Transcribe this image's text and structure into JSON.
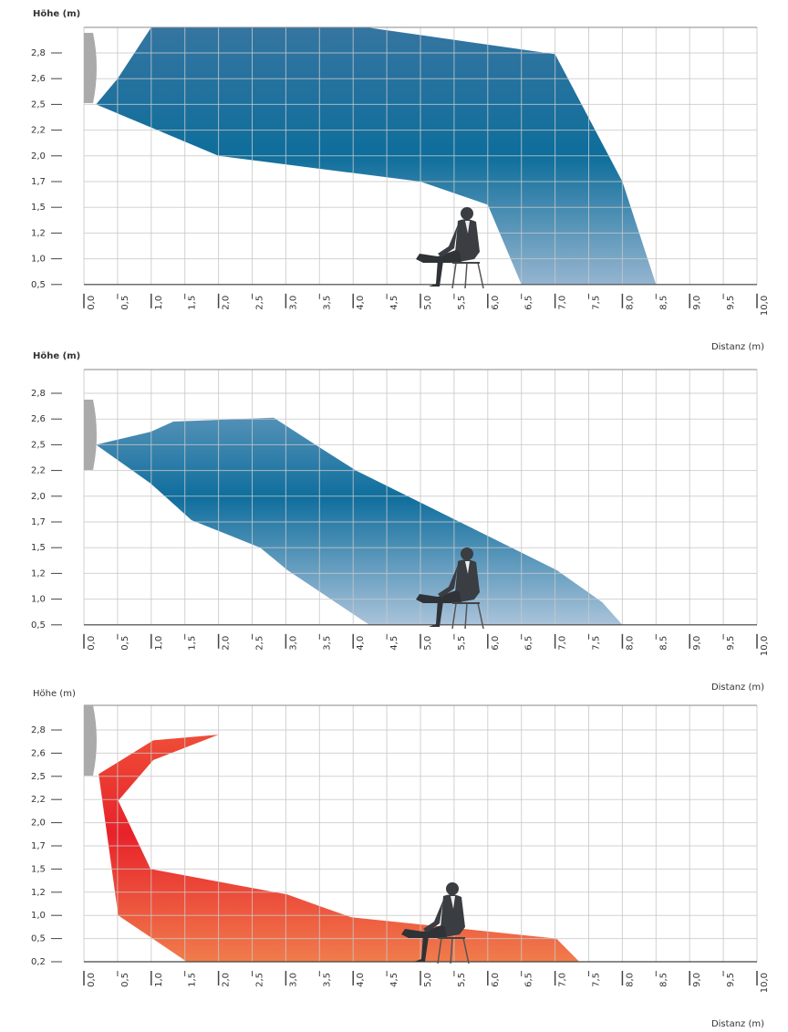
{
  "chart_data": [
    {
      "type": "area",
      "y_label": "Höhe (m)",
      "x_label": "Distanz (m)",
      "xlim": [
        0,
        10
      ],
      "xticks": [
        {
          "value": 0,
          "label": "0,0"
        },
        {
          "value": 0.5,
          "label": "0,5"
        },
        {
          "value": 1,
          "label": "1,0"
        },
        {
          "value": 1.5,
          "label": "1,5"
        },
        {
          "value": 2,
          "label": "2,0"
        },
        {
          "value": 2.5,
          "label": "2,5"
        },
        {
          "value": 3,
          "label": "3,0"
        },
        {
          "value": 3.5,
          "label": "3,5"
        },
        {
          "value": 4,
          "label": "4,0"
        },
        {
          "value": 4.5,
          "label": "4,5"
        },
        {
          "value": 5,
          "label": "5,0"
        },
        {
          "value": 5.5,
          "label": "5,5"
        },
        {
          "value": 6,
          "label": "6,0"
        },
        {
          "value": 6.5,
          "label": "6,5"
        },
        {
          "value": 7,
          "label": "7,0"
        },
        {
          "value": 7.5,
          "label": "7,5"
        },
        {
          "value": 8,
          "label": "8,0"
        },
        {
          "value": 8.5,
          "label": "8,5"
        },
        {
          "value": 9,
          "label": "9,0"
        },
        {
          "value": 9.5,
          "label": "9,5"
        },
        {
          "value": 10,
          "label": "10,0"
        }
      ],
      "ylim": [
        0.5,
        3.0
      ],
      "yticks": [
        {
          "value": 2.8,
          "label": "2,8"
        },
        {
          "value": 2.6,
          "label": "2,6"
        },
        {
          "value": 2.5,
          "label": "2,5"
        },
        {
          "value": 2.2,
          "label": "2,2"
        },
        {
          "value": 2.0,
          "label": "2,0"
        },
        {
          "value": 1.7,
          "label": "1,7"
        },
        {
          "value": 1.5,
          "label": "1,5"
        },
        {
          "value": 1.2,
          "label": "1,2"
        },
        {
          "value": 1.0,
          "label": "1,0"
        },
        {
          "value": 0.5,
          "label": "0,5"
        }
      ],
      "x": [
        0.18,
        0.5,
        1.0,
        4.2,
        7.0,
        8.0,
        8.5,
        6.5,
        6.0,
        5.0,
        2.0,
        1.0
      ],
      "values": [
        2.5,
        2.6,
        3.0,
        3.0,
        2.79,
        1.7,
        0.5,
        0.5,
        1.52,
        1.7,
        2.0,
        2.23
      ],
      "gradient": [
        "#3575a1",
        "#0e6e9b",
        "#95b5d0"
      ],
      "grid": true
    },
    {
      "type": "area",
      "y_label": "Höhe (m)",
      "x_label": "Distanz (m)",
      "xlim": [
        0,
        10
      ],
      "xticks": [
        {
          "value": 0,
          "label": "0,0"
        },
        {
          "value": 0.5,
          "label": "0,5"
        },
        {
          "value": 1,
          "label": "1,0"
        },
        {
          "value": 1.5,
          "label": "1,5"
        },
        {
          "value": 2,
          "label": "2,0"
        },
        {
          "value": 2.5,
          "label": "2,5"
        },
        {
          "value": 3,
          "label": "3,0"
        },
        {
          "value": 3.5,
          "label": "3,5"
        },
        {
          "value": 4,
          "label": "4,0"
        },
        {
          "value": 4.5,
          "label": "4,5"
        },
        {
          "value": 5,
          "label": "5,0"
        },
        {
          "value": 5.5,
          "label": "5,5"
        },
        {
          "value": 6,
          "label": "6,0"
        },
        {
          "value": 6.5,
          "label": "6,5"
        },
        {
          "value": 7,
          "label": "7,0"
        },
        {
          "value": 7.5,
          "label": "7,5"
        },
        {
          "value": 8,
          "label": "8,0"
        },
        {
          "value": 8.5,
          "label": "8,5"
        },
        {
          "value": 9,
          "label": "9,0"
        },
        {
          "value": 9.5,
          "label": "9,5"
        },
        {
          "value": 10,
          "label": "10,0"
        }
      ],
      "ylim": [
        0.5,
        3.0
      ],
      "yticks": [
        {
          "value": 2.8,
          "label": "2,8"
        },
        {
          "value": 2.6,
          "label": "2,6"
        },
        {
          "value": 2.5,
          "label": "2,5"
        },
        {
          "value": 2.2,
          "label": "2,2"
        },
        {
          "value": 2.0,
          "label": "2,0"
        },
        {
          "value": 1.7,
          "label": "1,7"
        },
        {
          "value": 1.5,
          "label": "1,5"
        },
        {
          "value": 1.2,
          "label": "1,2"
        },
        {
          "value": 1.0,
          "label": "1,0"
        },
        {
          "value": 0.5,
          "label": "0,5"
        }
      ],
      "x": [
        0.18,
        0.99,
        1.33,
        2.82,
        3.5,
        4.04,
        7.02,
        7.7,
        8.0,
        4.24,
        3.02,
        2.62,
        1.6,
        0.99
      ],
      "values": [
        2.5,
        2.55,
        2.59,
        2.61,
        2.47,
        2.2,
        1.24,
        0.94,
        0.5,
        0.5,
        1.24,
        1.5,
        1.72,
        2.1
      ],
      "gradient": [
        "#7ca6c6",
        "#0f6e9d",
        "#aac3da"
      ],
      "grid": true
    },
    {
      "type": "area",
      "y_label": "Höhe (m)",
      "x_label": "Distanz (m)",
      "xlim": [
        0,
        10
      ],
      "xticks": [
        {
          "value": 0,
          "label": "0,0"
        },
        {
          "value": 0.5,
          "label": "0,5"
        },
        {
          "value": 1,
          "label": "1,0"
        },
        {
          "value": 1.5,
          "label": "1,5"
        },
        {
          "value": 2,
          "label": "2,0"
        },
        {
          "value": 2.5,
          "label": "2,5"
        },
        {
          "value": 3,
          "label": "3,0"
        },
        {
          "value": 3.5,
          "label": "3,5"
        },
        {
          "value": 4,
          "label": "4,0"
        },
        {
          "value": 4.5,
          "label": "4,5"
        },
        {
          "value": 5,
          "label": "5,0"
        },
        {
          "value": 5.5,
          "label": "5,5"
        },
        {
          "value": 6,
          "label": "6,0"
        },
        {
          "value": 6.5,
          "label": "6,5"
        },
        {
          "value": 7,
          "label": "7,0"
        },
        {
          "value": 7.5,
          "label": "7,5"
        },
        {
          "value": 8,
          "label": "8,0"
        },
        {
          "value": 8.5,
          "label": "8,5"
        },
        {
          "value": 9,
          "label": "9,0"
        },
        {
          "value": 9.5,
          "label": "9,5"
        },
        {
          "value": 10,
          "label": "10,0"
        }
      ],
      "ylim": [
        0.2,
        3.0
      ],
      "yticks": [
        {
          "value": 2.8,
          "label": "2,8"
        },
        {
          "value": 2.6,
          "label": "2,6"
        },
        {
          "value": 2.5,
          "label": "2,5"
        },
        {
          "value": 2.2,
          "label": "2,2"
        },
        {
          "value": 2.0,
          "label": "2,0"
        },
        {
          "value": 1.7,
          "label": "1,7"
        },
        {
          "value": 1.5,
          "label": "1,5"
        },
        {
          "value": 1.2,
          "label": "1,2"
        },
        {
          "value": 1.0,
          "label": "1,0"
        },
        {
          "value": 0.5,
          "label": "0,5"
        },
        {
          "value": 0.2,
          "label": "0,2"
        }
      ],
      "x": [
        0.22,
        1.03,
        2.0,
        1.03,
        0.51,
        0.99,
        3.02,
        3.5,
        3.97,
        7.02,
        7.36,
        1.53,
        0.51
      ],
      "values": [
        2.51,
        2.71,
        2.76,
        2.57,
        2.19,
        1.5,
        1.18,
        1.08,
        0.96,
        0.5,
        0.2,
        0.2,
        1.0
      ],
      "gradient": [
        "#f05a3c",
        "#e8222a",
        "#f07c4c"
      ],
      "grid": true
    }
  ]
}
